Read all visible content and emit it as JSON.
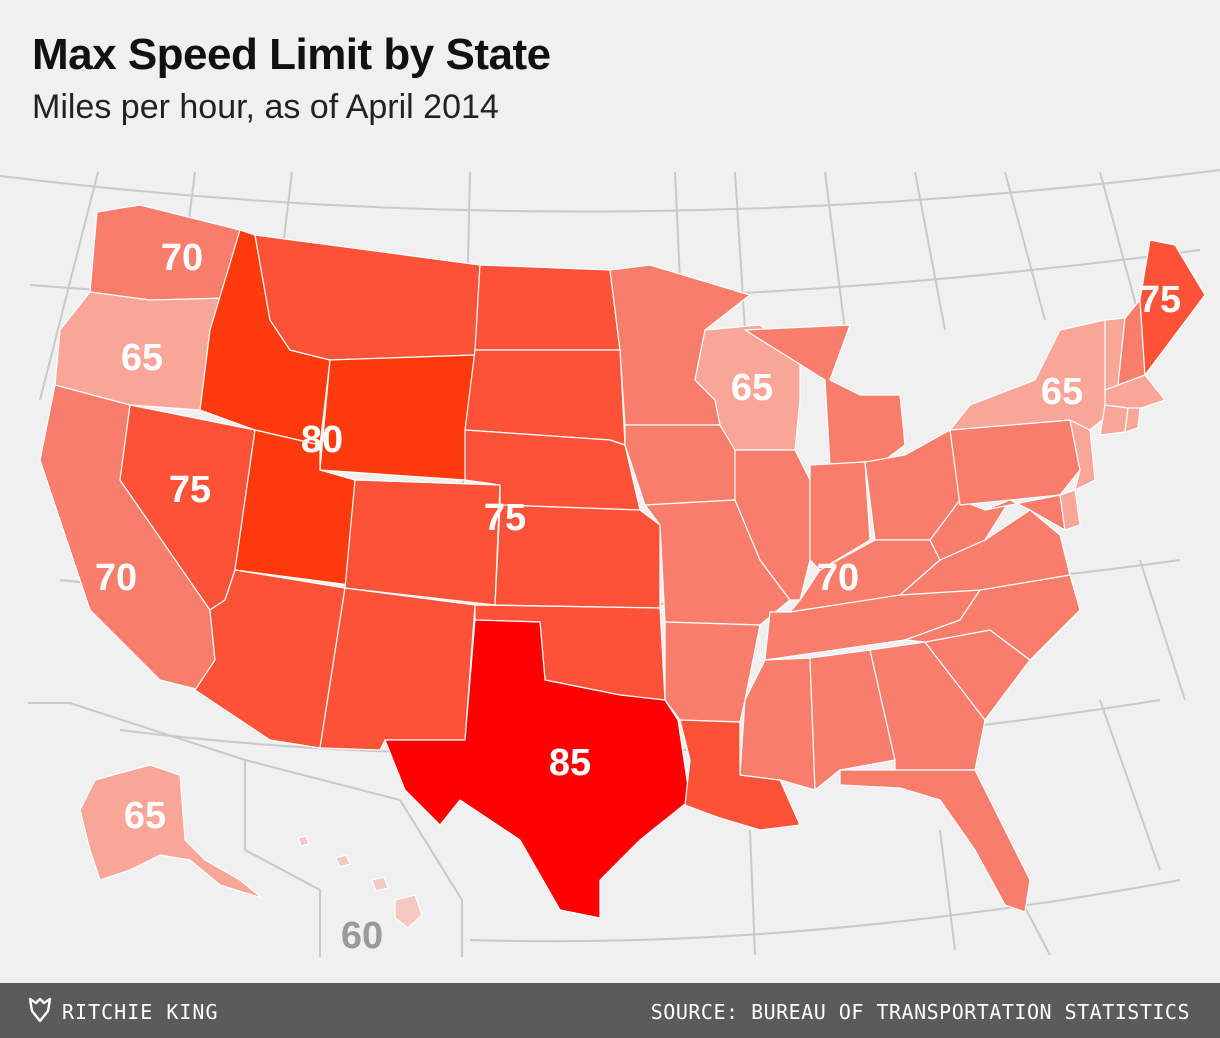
{
  "title": "Max Speed Limit by State",
  "subtitle": "Miles per hour, as of April 2014",
  "author": "RITCHIE KING",
  "source": "SOURCE: BUREAU OF TRANSPORTATION STATISTICS",
  "colors": {
    "60": "#f6c9c0",
    "65": "#f9a598",
    "70": "#f97d6b",
    "75": "#fc5238",
    "80": "#ff3a0c",
    "85": "#ff0000",
    "background": "#f0f0f0",
    "footer": "#5b5b5b"
  },
  "speed_limits": {
    "WA": 70,
    "OR": 65,
    "CA": 70,
    "NV": 75,
    "ID": 80,
    "MT": 75,
    "WY": 80,
    "UT": 80,
    "AZ": 75,
    "NM": 75,
    "CO": 75,
    "ND": 75,
    "SD": 75,
    "NE": 75,
    "KS": 75,
    "OK": 75,
    "TX": 85,
    "MN": 70,
    "IA": 70,
    "MO": 70,
    "AR": 70,
    "LA": 75,
    "WI": 65,
    "IL": 70,
    "MI": 70,
    "IN": 70,
    "OH": 70,
    "KY": 70,
    "TN": 70,
    "MS": 70,
    "AL": 70,
    "GA": 70,
    "FL": 70,
    "SC": 70,
    "NC": 70,
    "VA": 70,
    "WV": 70,
    "PA": 70,
    "NY": 65,
    "VT": 65,
    "NH": 70,
    "ME": 75,
    "MA": 65,
    "RI": 65,
    "CT": 65,
    "NJ": 65,
    "DE": 65,
    "MD": 70,
    "AK": 65,
    "HI": 60
  },
  "labels": [
    "70",
    "65",
    "80",
    "75",
    "70",
    "75",
    "85",
    "65",
    "70",
    "65",
    "75",
    "65",
    "60"
  ]
}
